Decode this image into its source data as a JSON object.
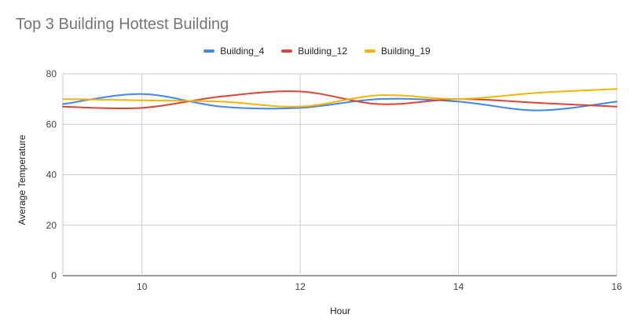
{
  "chart_data": {
    "type": "line",
    "title": "Top 3 Building Hottest Building",
    "xlabel": "Hour",
    "ylabel": "Average Temperature",
    "xlim": [
      9,
      16
    ],
    "ylim": [
      0,
      80
    ],
    "x_ticks": [
      10,
      12,
      14,
      16
    ],
    "y_ticks": [
      0,
      20,
      40,
      60,
      80
    ],
    "grid": true,
    "legend_position": "top",
    "x": [
      9,
      10,
      11,
      12,
      13,
      14,
      15,
      16
    ],
    "series": [
      {
        "name": "Building_4",
        "color": "#4285F4",
        "values": [
          68,
          72,
          67,
          66.5,
          70,
          69,
          65.5,
          69
        ]
      },
      {
        "name": "Building_12",
        "color": "#DB4437",
        "values": [
          67,
          66.5,
          71,
          73,
          68,
          70,
          68.5,
          67
        ]
      },
      {
        "name": "Building_19",
        "color": "#F4B400",
        "values": [
          70,
          69.5,
          69,
          67,
          71.5,
          70,
          72.5,
          74
        ]
      }
    ]
  }
}
